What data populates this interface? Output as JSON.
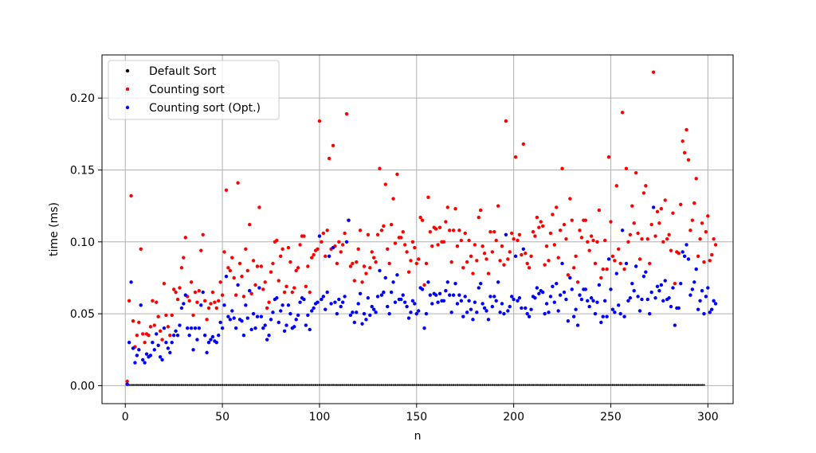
{
  "chart_data": {
    "type": "scatter",
    "title": "",
    "xlabel": "n",
    "ylabel": "time (ms)",
    "xlim": [
      -12,
      313
    ],
    "ylim": [
      -0.0125,
      0.23
    ],
    "xticks": [
      0,
      50,
      100,
      150,
      200,
      250,
      300
    ],
    "xtick_labels": [
      "0",
      "50",
      "100",
      "150",
      "200",
      "250",
      "300"
    ],
    "yticks": [
      0.0,
      0.05,
      0.1,
      0.15,
      0.2
    ],
    "ytick_labels": [
      "0.00",
      "0.05",
      "0.10",
      "0.15",
      "0.20"
    ],
    "grid": true,
    "legend_position": "top-left",
    "x_range": [
      1,
      299
    ],
    "series": [
      {
        "name": "Default Sort",
        "color": "#000000",
        "x_range": [
          1,
          299
        ],
        "y": [
          0.0005,
          0.0005,
          0.0005,
          0.0005,
          0.0005,
          0.0005,
          0.0005,
          0.0005,
          0.0005,
          0.0005,
          0.0005,
          0.0005,
          0.0005,
          0.0005,
          0.0005,
          0.0005,
          0.0005,
          0.0005,
          0.0005,
          0.0005,
          0.0005,
          0.0005,
          0.0005,
          0.0005,
          0.0005,
          0.0005,
          0.0005,
          0.0005,
          0.0005,
          0.0005,
          0.0005,
          0.0005,
          0.0005,
          0.0005,
          0.0005,
          0.0005,
          0.0005,
          0.0005,
          0.0005,
          0.0005,
          0.0005,
          0.0005,
          0.0005,
          0.0005,
          0.0005,
          0.0005,
          0.0005,
          0.0005,
          0.0005,
          0.0005,
          0.0005,
          0.0005,
          0.0005,
          0.0005,
          0.0005,
          0.0005,
          0.0005,
          0.0005,
          0.0005,
          0.0005,
          0.0005,
          0.0005,
          0.0005,
          0.0005,
          0.0005,
          0.0005,
          0.0005,
          0.0005,
          0.0005,
          0.0005,
          0.0005,
          0.0005,
          0.0005,
          0.0005,
          0.0005,
          0.0005,
          0.0005,
          0.0005,
          0.0005,
          0.0005,
          0.0005,
          0.0005,
          0.0005,
          0.0005,
          0.0005,
          0.0005,
          0.0005,
          0.0005,
          0.0005,
          0.0005,
          0.0005,
          0.0005,
          0.0005,
          0.0005,
          0.0005,
          0.0005,
          0.0005,
          0.0005,
          0.0005,
          0.0005,
          0.0005,
          0.0005,
          0.0005,
          0.0005,
          0.0005,
          0.0005,
          0.0005,
          0.0005,
          0.0005,
          0.0005,
          0.0005,
          0.0005,
          0.0005,
          0.0005,
          0.0005,
          0.0005,
          0.0005,
          0.0005,
          0.0005,
          0.0005,
          0.0005,
          0.0005,
          0.0005,
          0.0005,
          0.0005,
          0.0005,
          0.0005,
          0.0005,
          0.0005,
          0.0005,
          0.0005,
          0.0005,
          0.0005,
          0.0005,
          0.0005,
          0.0005,
          0.0005,
          0.0005,
          0.0005,
          0.0005,
          0.0005,
          0.0005,
          0.0005,
          0.0005,
          0.0005,
          0.0005,
          0.0005,
          0.0005,
          0.0005,
          0.0005,
          0.0005,
          0.0005,
          0.0005,
          0.0005,
          0.0005,
          0.0005,
          0.0005,
          0.0005,
          0.0005,
          0.0005,
          0.0005,
          0.0005,
          0.0005,
          0.0005,
          0.0005,
          0.0005,
          0.0005,
          0.0005,
          0.0005,
          0.0005,
          0.0005,
          0.0005,
          0.0005,
          0.0005,
          0.0005,
          0.0005,
          0.0005,
          0.0005,
          0.0005,
          0.0005,
          0.0005,
          0.0005,
          0.0005,
          0.0005,
          0.0005,
          0.0005,
          0.0005,
          0.0005,
          0.0005,
          0.0005,
          0.0005,
          0.0005,
          0.0005,
          0.0005,
          0.0005,
          0.0005,
          0.0005,
          0.0005,
          0.0005,
          0.0005,
          0.0005,
          0.0005,
          0.0005,
          0.0005,
          0.0005,
          0.0005,
          0.0005,
          0.0005,
          0.0005,
          0.0005,
          0.0005,
          0.0005,
          0.0005,
          0.0005,
          0.0005,
          0.0005,
          0.0005,
          0.0005,
          0.0005,
          0.0005,
          0.0005,
          0.0005,
          0.0005,
          0.0005,
          0.0005,
          0.0005,
          0.0005,
          0.0005,
          0.0005,
          0.0005,
          0.0005,
          0.0005,
          0.0005,
          0.0005,
          0.0005,
          0.0005,
          0.0005,
          0.0005,
          0.0005,
          0.0005,
          0.0005,
          0.0005,
          0.0005,
          0.0005,
          0.0005,
          0.0005,
          0.0005,
          0.0005,
          0.0005,
          0.0005,
          0.0005,
          0.0005,
          0.0005,
          0.0005,
          0.0005,
          0.0005,
          0.0005,
          0.0005,
          0.0005,
          0.0005,
          0.0005,
          0.0005,
          0.0005,
          0.0005,
          0.0005,
          0.0005,
          0.0005,
          0.0005,
          0.0005,
          0.0005,
          0.0005,
          0.0005,
          0.0005,
          0.0005,
          0.0005,
          0.0005,
          0.0005,
          0.0005,
          0.0005,
          0.0005,
          0.0005,
          0.0005,
          0.0005,
          0.0005,
          0.0005,
          0.0005,
          0.0005,
          0.0005,
          0.0005,
          0.0005,
          0.0005,
          0.0005,
          0.0005,
          0.0005,
          0.0005,
          0.0005,
          0.0005,
          0.0005
        ]
      },
      {
        "name": "Counting sort",
        "color": "#ff0000",
        "x_range": [
          1,
          299
        ],
        "y": [
          0.003,
          0.059,
          0.132,
          0.045,
          0.027,
          0.035,
          0.044,
          0.095,
          0.036,
          0.03,
          0.036,
          0.035,
          0.041,
          0.059,
          0.042,
          0.058,
          0.048,
          0.038,
          0.032,
          0.071,
          0.049,
          0.041,
          0.035,
          0.049,
          0.067,
          0.065,
          0.06,
          0.068,
          0.082,
          0.089,
          0.103,
          0.062,
          0.059,
          0.072,
          0.049,
          0.065,
          0.058,
          0.066,
          0.094,
          0.105,
          0.059,
          0.046,
          0.054,
          0.057,
          0.065,
          0.058,
          0.054,
          0.059,
          0.072,
          0.063,
          0.093,
          0.136,
          0.082,
          0.08,
          0.089,
          0.075,
          0.063,
          0.141,
          0.085,
          0.076,
          0.062,
          0.095,
          0.08,
          0.112,
          0.064,
          0.087,
          0.07,
          0.083,
          0.124,
          0.083,
          0.067,
          0.072,
          0.054,
          0.058,
          0.079,
          0.085,
          0.1,
          0.101,
          0.073,
          0.09,
          0.095,
          0.065,
          0.069,
          0.096,
          0.086,
          0.065,
          0.068,
          0.08,
          0.082,
          0.098,
          0.104,
          0.104,
          0.069,
          0.083,
          0.065,
          0.089,
          0.091,
          0.094,
          0.095,
          0.184,
          0.1,
          0.106,
          0.09,
          0.108,
          0.158,
          0.095,
          0.167,
          0.097,
          0.085,
          0.1,
          0.093,
          0.098,
          0.106,
          0.189,
          0.115,
          0.083,
          0.085,
          0.073,
          0.086,
          0.095,
          0.108,
          0.072,
          0.083,
          0.078,
          0.105,
          0.082,
          0.093,
          0.089,
          0.086,
          0.105,
          0.151,
          0.108,
          0.111,
          0.14,
          0.095,
          0.085,
          0.112,
          0.13,
          0.099,
          0.147,
          0.103,
          0.103,
          0.107,
          0.098,
          0.093,
          0.079,
          0.087,
          0.1,
          0.096,
          0.085,
          0.088,
          0.117,
          0.115,
          0.07,
          0.085,
          0.131,
          0.107,
          0.097,
          0.11,
          0.109,
          0.098,
          0.11,
          0.1,
          0.1,
          0.114,
          0.124,
          0.108,
          0.086,
          0.108,
          0.123,
          0.097,
          0.108,
          0.101,
          0.082,
          0.106,
          0.086,
          0.101,
          0.09,
          0.078,
          0.098,
          0.087,
          0.117,
          0.122,
          0.097,
          0.092,
          0.088,
          0.078,
          0.107,
          0.093,
          0.107,
          0.101,
          0.125,
          0.087,
          0.097,
          0.084,
          0.184,
          0.088,
          0.093,
          0.106,
          0.102,
          0.159,
          0.101,
          0.105,
          0.091,
          0.168,
          0.092,
          0.085,
          0.082,
          0.09,
          0.107,
          0.104,
          0.117,
          0.11,
          0.114,
          0.111,
          0.084,
          0.097,
          0.087,
          0.106,
          0.119,
          0.098,
          0.124,
          0.089,
          0.108,
          0.151,
          0.112,
          0.102,
          0.077,
          0.13,
          0.115,
          0.082,
          0.09,
          0.072,
          0.108,
          0.103,
          0.115,
          0.115,
          0.1,
          0.094,
          0.104,
          0.101,
          0.085,
          0.1,
          0.122,
          0.075,
          0.081,
          0.101,
          0.081,
          0.159,
          0.114,
          0.09,
          0.087,
          0.139,
          0.095,
          0.085,
          0.19,
          0.081,
          0.151,
          0.1,
          0.105,
          0.125,
          0.113,
          0.148,
          0.106,
          0.088,
          0.102,
          0.134,
          0.139,
          0.102,
          0.085,
          0.112,
          0.218,
          0.104,
          0.121,
          0.113,
          0.123,
          0.1,
          0.129,
          0.102,
          0.105,
          0.094,
          0.12,
          0.071,
          0.093,
          0.092,
          0.126,
          0.17,
          0.162,
          0.178,
          0.157,
          0.108,
          0.115,
          0.127,
          0.144,
          0.09,
          0.102,
          0.113,
          0.086,
          0.107,
          0.118,
          0.087,
          0.091,
          0.102,
          0.098
        ]
      },
      {
        "name": "Counting sort (Opt.)",
        "color": "#0000ff",
        "x_range": [
          1,
          299
        ],
        "y": [
          0.001,
          0.03,
          0.072,
          0.026,
          0.016,
          0.021,
          0.025,
          0.056,
          0.018,
          0.016,
          0.022,
          0.02,
          0.021,
          0.03,
          0.025,
          0.036,
          0.028,
          0.02,
          0.018,
          0.04,
          0.03,
          0.026,
          0.023,
          0.03,
          0.035,
          0.038,
          0.035,
          0.042,
          0.054,
          0.057,
          0.063,
          0.04,
          0.035,
          0.04,
          0.025,
          0.04,
          0.032,
          0.04,
          0.056,
          0.065,
          0.035,
          0.023,
          0.03,
          0.032,
          0.034,
          0.031,
          0.03,
          0.035,
          0.044,
          0.04,
          0.056,
          0.076,
          0.048,
          0.046,
          0.052,
          0.047,
          0.04,
          0.07,
          0.046,
          0.045,
          0.035,
          0.056,
          0.047,
          0.066,
          0.039,
          0.05,
          0.04,
          0.048,
          0.068,
          0.048,
          0.04,
          0.042,
          0.032,
          0.035,
          0.046,
          0.051,
          0.06,
          0.061,
          0.044,
          0.052,
          0.056,
          0.038,
          0.042,
          0.056,
          0.05,
          0.04,
          0.041,
          0.046,
          0.049,
          0.058,
          0.061,
          0.06,
          0.042,
          0.049,
          0.039,
          0.052,
          0.054,
          0.057,
          0.058,
          0.104,
          0.06,
          0.062,
          0.053,
          0.065,
          0.09,
          0.057,
          0.096,
          0.058,
          0.05,
          0.06,
          0.055,
          0.058,
          0.062,
          0.1,
          0.115,
          0.049,
          0.051,
          0.044,
          0.051,
          0.057,
          0.064,
          0.043,
          0.05,
          0.046,
          0.061,
          0.049,
          0.055,
          0.053,
          0.051,
          0.062,
          0.08,
          0.063,
          0.065,
          0.075,
          0.055,
          0.05,
          0.065,
          0.072,
          0.058,
          0.077,
          0.06,
          0.06,
          0.063,
          0.058,
          0.055,
          0.047,
          0.051,
          0.059,
          0.057,
          0.05,
          0.052,
          0.068,
          0.067,
          0.04,
          0.05,
          0.072,
          0.063,
          0.057,
          0.064,
          0.063,
          0.058,
          0.064,
          0.059,
          0.059,
          0.066,
          0.072,
          0.063,
          0.051,
          0.063,
          0.071,
          0.057,
          0.063,
          0.059,
          0.048,
          0.062,
          0.051,
          0.059,
          0.053,
          0.046,
          0.058,
          0.051,
          0.068,
          0.071,
          0.057,
          0.054,
          0.052,
          0.046,
          0.062,
          0.055,
          0.062,
          0.059,
          0.072,
          0.051,
          0.057,
          0.05,
          0.105,
          0.052,
          0.055,
          0.062,
          0.06,
          0.09,
          0.059,
          0.061,
          0.054,
          0.095,
          0.054,
          0.05,
          0.048,
          0.053,
          0.062,
          0.061,
          0.068,
          0.064,
          0.066,
          0.065,
          0.05,
          0.057,
          0.051,
          0.062,
          0.069,
          0.058,
          0.071,
          0.052,
          0.063,
          0.085,
          0.065,
          0.06,
          0.045,
          0.075,
          0.067,
          0.048,
          0.053,
          0.042,
          0.063,
          0.06,
          0.067,
          0.067,
          0.059,
          0.055,
          0.061,
          0.059,
          0.05,
          0.058,
          0.07,
          0.044,
          0.048,
          0.059,
          0.048,
          0.088,
          0.067,
          0.053,
          0.051,
          0.078,
          0.056,
          0.05,
          0.108,
          0.048,
          0.085,
          0.059,
          0.061,
          0.071,
          0.066,
          0.083,
          0.062,
          0.052,
          0.06,
          0.076,
          0.079,
          0.06,
          0.05,
          0.065,
          0.124,
          0.061,
          0.069,
          0.066,
          0.07,
          0.059,
          0.073,
          0.06,
          0.061,
          0.055,
          0.068,
          0.042,
          0.054,
          0.054,
          0.071,
          0.093,
          0.09,
          0.098,
          0.088,
          0.063,
          0.067,
          0.072,
          0.081,
          0.053,
          0.059,
          0.066,
          0.05,
          0.062,
          0.068,
          0.051,
          0.053,
          0.059,
          0.057
        ]
      }
    ]
  }
}
